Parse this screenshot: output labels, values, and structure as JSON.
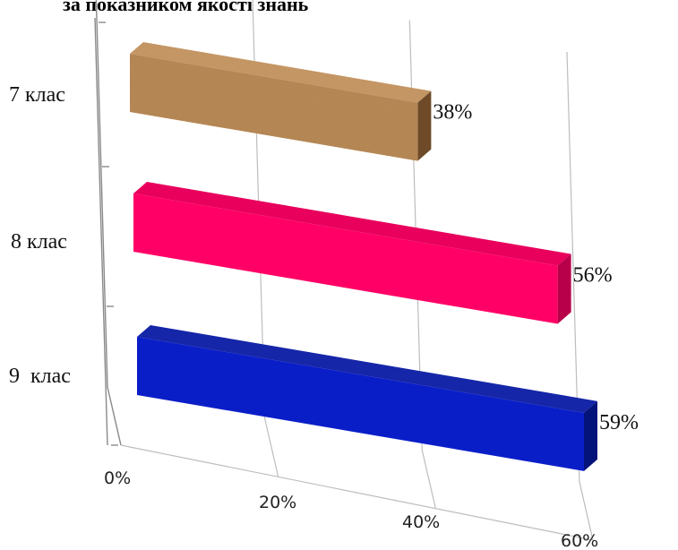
{
  "chart_data": {
    "type": "bar",
    "orientation": "horizontal",
    "style": "3d",
    "title": "за показником якості знань",
    "categories": [
      "7 клас",
      "8 клас",
      "9  клас"
    ],
    "values": [
      38,
      56,
      59
    ],
    "value_labels": [
      "38%",
      "56%",
      "59%"
    ],
    "bar_colors": [
      "#b5834f",
      "#ff0066",
      "#0a1ec8"
    ],
    "bar_top_colors": [
      "#c99865",
      "#e8005c",
      "#1626a8"
    ],
    "bar_side_colors": [
      "#6e4a28",
      "#b8004a",
      "#03137a"
    ],
    "x_ticks": [
      "0%",
      "20%",
      "40%",
      "60%"
    ],
    "xlim": [
      0,
      60
    ],
    "grid": true,
    "legend": "none"
  }
}
